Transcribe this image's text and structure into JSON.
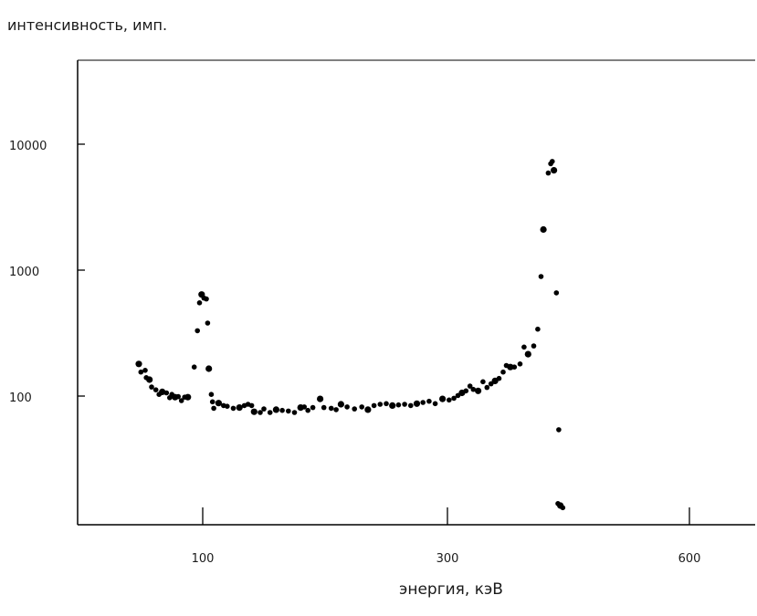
{
  "chart_data": {
    "type": "scatter",
    "title": "",
    "ylabel": "интенсивность, имп.",
    "xlabel": "энергия, кэВ",
    "y_scale": "log",
    "ylim": [
      11,
      19000
    ],
    "y_ticks": [
      {
        "value": 100,
        "label": "100"
      },
      {
        "value": 1000,
        "label": "1000"
      },
      {
        "value": 10000,
        "label": "10000"
      }
    ],
    "x_ticks": [
      {
        "value": 100,
        "label": "100"
      },
      {
        "value": 300,
        "label": "300"
      },
      {
        "value": 600,
        "label": "600"
      }
    ],
    "grid": false,
    "series": [
      {
        "color": "#000000",
        "points": [
          [
            40,
            180
          ],
          [
            42,
            155
          ],
          [
            46,
            160
          ],
          [
            47,
            140
          ],
          [
            50,
            135
          ],
          [
            52,
            118
          ],
          [
            56,
            112
          ],
          [
            59,
            103
          ],
          [
            62,
            108
          ],
          [
            66,
            106
          ],
          [
            69,
            97
          ],
          [
            71,
            103
          ],
          [
            74,
            98
          ],
          [
            77,
            99
          ],
          [
            80,
            92
          ],
          [
            83,
            98
          ],
          [
            86,
            98
          ],
          [
            92,
            170
          ],
          [
            95,
            330
          ],
          [
            97,
            550
          ],
          [
            99,
            640
          ],
          [
            101,
            600
          ],
          [
            103,
            590
          ],
          [
            104,
            380
          ],
          [
            105,
            165
          ],
          [
            107,
            103
          ],
          [
            108,
            90
          ],
          [
            109,
            80
          ],
          [
            113,
            88
          ],
          [
            117,
            84
          ],
          [
            120,
            83
          ],
          [
            125,
            80
          ],
          [
            130,
            81
          ],
          [
            134,
            84
          ],
          [
            137,
            86
          ],
          [
            140,
            84
          ],
          [
            142,
            75
          ],
          [
            147,
            74
          ],
          [
            150,
            79
          ],
          [
            155,
            74
          ],
          [
            160,
            78
          ],
          [
            165,
            77
          ],
          [
            170,
            76
          ],
          [
            175,
            74
          ],
          [
            180,
            81
          ],
          [
            183,
            82
          ],
          [
            186,
            77
          ],
          [
            190,
            81
          ],
          [
            196,
            95
          ],
          [
            199,
            81
          ],
          [
            205,
            80
          ],
          [
            209,
            78
          ],
          [
            213,
            86
          ],
          [
            218,
            82
          ],
          [
            224,
            79
          ],
          [
            230,
            82
          ],
          [
            235,
            78
          ],
          [
            240,
            84
          ],
          [
            245,
            86
          ],
          [
            250,
            87
          ],
          [
            255,
            84
          ],
          [
            260,
            85
          ],
          [
            265,
            86
          ],
          [
            270,
            84
          ],
          [
            275,
            87
          ],
          [
            280,
            89
          ],
          [
            285,
            91
          ],
          [
            290,
            87
          ],
          [
            296,
            95
          ],
          [
            302,
            93
          ],
          [
            308,
            96
          ],
          [
            313,
            101
          ],
          [
            318,
            106
          ],
          [
            323,
            110
          ],
          [
            328,
            120
          ],
          [
            332,
            113
          ],
          [
            338,
            110
          ],
          [
            344,
            130
          ],
          [
            349,
            117
          ],
          [
            354,
            125
          ],
          [
            359,
            132
          ],
          [
            364,
            138
          ],
          [
            369,
            155
          ],
          [
            373,
            175
          ],
          [
            378,
            170
          ],
          [
            383,
            170
          ],
          [
            390,
            180
          ],
          [
            395,
            245
          ],
          [
            400,
            215
          ],
          [
            407,
            250
          ],
          [
            412,
            340
          ],
          [
            416,
            890
          ],
          [
            419,
            2100
          ],
          [
            425,
            5900
          ],
          [
            428,
            7000
          ],
          [
            430,
            7300
          ],
          [
            432,
            6200
          ],
          [
            435,
            660
          ],
          [
            438,
            54
          ],
          [
            437,
            14
          ],
          [
            440,
            13.5
          ],
          [
            443,
            13
          ]
        ]
      }
    ]
  }
}
